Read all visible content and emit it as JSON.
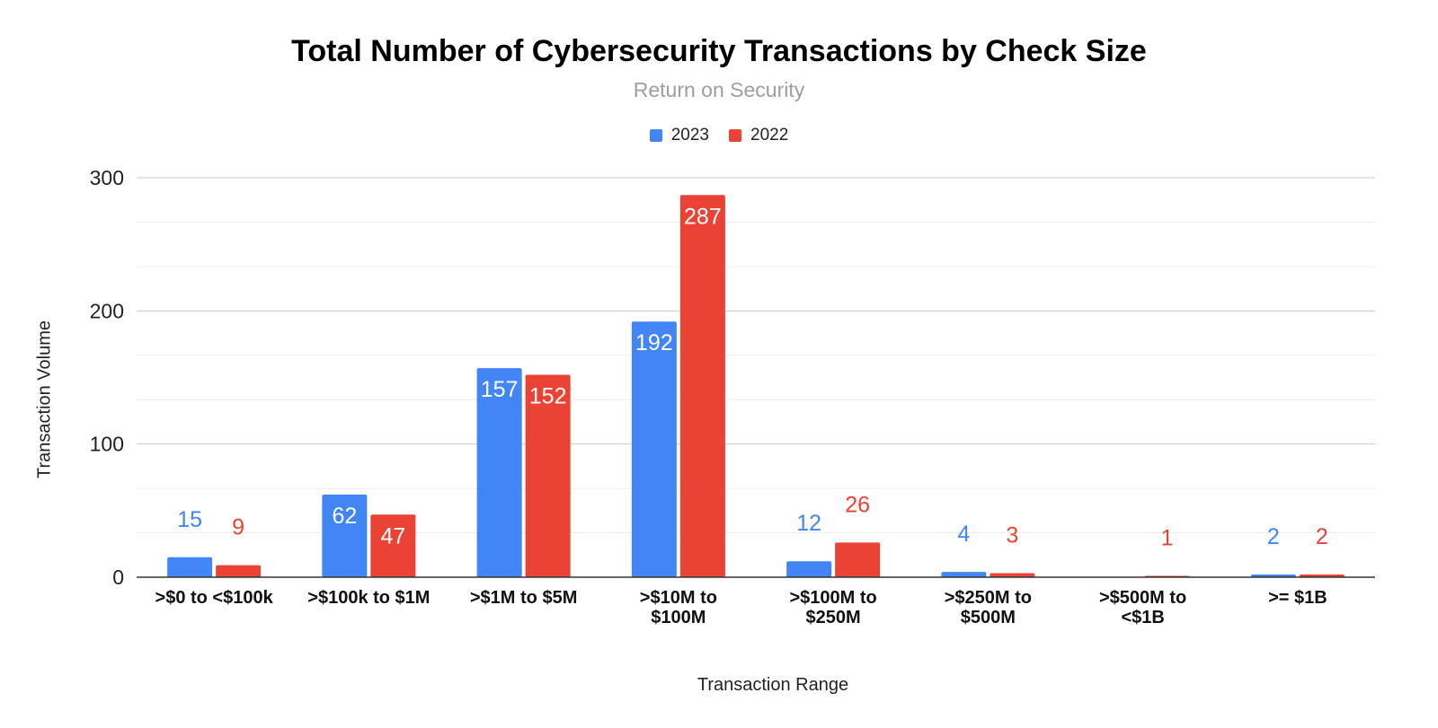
{
  "chart_data": {
    "type": "bar",
    "title": "Total Number of Cybersecurity Transactions by Check Size",
    "subtitle": "Return on Security",
    "xlabel": "Transaction Range",
    "ylabel": "Transaction Volume",
    "ylim": [
      0,
      300
    ],
    "yticks": [
      "0",
      "100",
      "200",
      "300"
    ],
    "categories": [
      [
        ">$0 to <$100k"
      ],
      [
        ">$100k to $1M"
      ],
      [
        ">$1M to $5M"
      ],
      [
        ">$10M to",
        "$100M"
      ],
      [
        ">$100M to",
        "$250M"
      ],
      [
        ">$250M to",
        "$500M"
      ],
      [
        ">$500M to",
        "<$1B"
      ],
      [
        ">= $1B"
      ]
    ],
    "series": [
      {
        "name": "2023",
        "color": "#4285f4",
        "values": [
          15,
          62,
          157,
          192,
          12,
          4,
          0,
          2
        ]
      },
      {
        "name": "2022",
        "color": "#ea4335",
        "values": [
          9,
          47,
          152,
          287,
          26,
          3,
          1,
          2
        ]
      }
    ],
    "legend_position": "top",
    "grid": true
  }
}
